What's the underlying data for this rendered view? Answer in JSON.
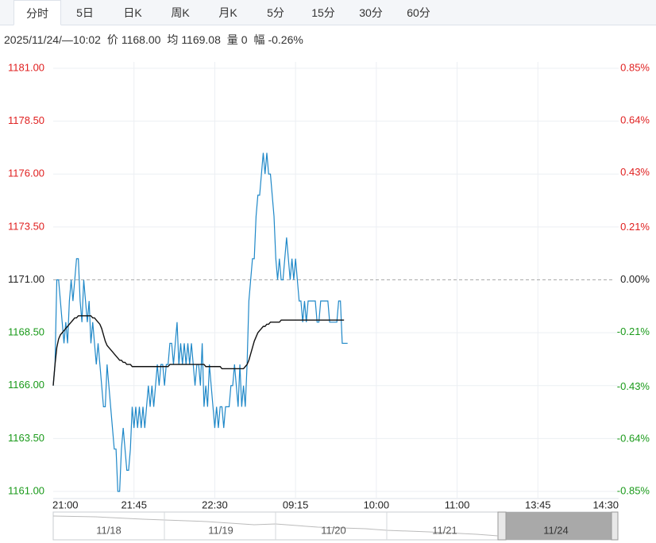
{
  "tabs": [
    "分时",
    "5日",
    "日K",
    "周K",
    "月K",
    "5分",
    "15分",
    "30分",
    "60分"
  ],
  "info": {
    "time": "2025/11/24/—10:02",
    "price_label": "价",
    "price": "1168.00",
    "avg_label": "均",
    "avg": "1169.08",
    "vol_label": "量",
    "vol": "0",
    "chg_label": "幅",
    "chg": "-0.26%"
  },
  "navigator": {
    "labels": [
      "11/18",
      "11/19",
      "11/20",
      "11/21",
      "11/24"
    ]
  },
  "chart_data": {
    "type": "line",
    "xlim": [
      0,
      315
    ],
    "xticks": [
      {
        "value": 0,
        "label": "21:00"
      },
      {
        "value": 45,
        "label": "21:45"
      },
      {
        "value": 90,
        "label": "22:30"
      },
      {
        "value": 135,
        "label": "09:15"
      },
      {
        "value": 180,
        "label": "10:00"
      },
      {
        "value": 225,
        "label": "11:00"
      },
      {
        "value": 270,
        "label": "13:45"
      },
      {
        "value": 315,
        "label": "14:30"
      }
    ],
    "ylim": [
      1161,
      1181
    ],
    "yticks": [
      {
        "value": 1181,
        "label": "1181.00"
      },
      {
        "value": 1178.5,
        "label": "1178.50"
      },
      {
        "value": 1176,
        "label": "1176.00"
      },
      {
        "value": 1173.5,
        "label": "1173.50"
      },
      {
        "value": 1171,
        "label": "1171.00"
      },
      {
        "value": 1168.5,
        "label": "1168.50"
      },
      {
        "value": 1166,
        "label": "1166.00"
      },
      {
        "value": 1163.5,
        "label": "1163.50"
      },
      {
        "value": 1161,
        "label": "1161.00"
      }
    ],
    "y2lim": [
      -0.85,
      0.85
    ],
    "y2ticks": [
      {
        "value": 0.85,
        "label": "0.85%"
      },
      {
        "value": 0.64,
        "label": "0.64%"
      },
      {
        "value": 0.43,
        "label": "0.43%"
      },
      {
        "value": 0.21,
        "label": "0.21%"
      },
      {
        "value": 0,
        "label": "0.00%"
      },
      {
        "value": -0.21,
        "label": "-0.21%"
      },
      {
        "value": -0.43,
        "label": "-0.43%"
      },
      {
        "value": -0.64,
        "label": "-0.64%"
      },
      {
        "value": -0.85,
        "label": "-0.85%"
      }
    ],
    "grid": true,
    "up_color": "#e02020",
    "down_color": "#1a9a1a",
    "flat_color": "#222222",
    "series": [
      {
        "color": "#1f88c8",
        "values": [
          1166,
          1167,
          1171,
          1171,
          1170,
          1169,
          1168,
          1169,
          1168,
          1170,
          1171,
          1170,
          1171,
          1172,
          1172,
          1170,
          1169,
          1171,
          1170,
          1169,
          1170,
          1168,
          1169,
          1168,
          1167,
          1168,
          1167,
          1166,
          1165,
          1165,
          1167,
          1166,
          1165,
          1164,
          1163,
          1163,
          1161,
          1161,
          1163,
          1164,
          1163,
          1162,
          1162,
          1163,
          1165,
          1164,
          1165,
          1164,
          1165,
          1164,
          1165,
          1164,
          1165,
          1166,
          1165,
          1166,
          1165,
          1166,
          1167,
          1166,
          1167,
          1167,
          1166,
          1167,
          1167,
          1168,
          1168,
          1167,
          1168,
          1169,
          1167,
          1168,
          1167,
          1168,
          1167,
          1168,
          1167,
          1168,
          1167,
          1166,
          1167,
          1167,
          1166,
          1168,
          1165,
          1166,
          1165,
          1167,
          1166,
          1165,
          1164,
          1165,
          1164,
          1165,
          1165,
          1164,
          1165,
          1165,
          1165,
          1166,
          1166,
          1167,
          1166,
          1165,
          1167,
          1165,
          1166,
          1165,
          1167,
          1170,
          1171,
          1172,
          1172,
          1174,
          1175,
          1175,
          1176,
          1177,
          1176,
          1177,
          1176,
          1176,
          1175,
          1174,
          1172,
          1171,
          1172,
          1171,
          1171,
          1172,
          1173,
          1172,
          1171,
          1172,
          1171,
          1172,
          1171,
          1170,
          1170,
          1169,
          1170,
          1169,
          1170,
          1170,
          1170,
          1170,
          1170,
          1169,
          1169,
          1170,
          1170,
          1170,
          1170,
          1170,
          1169,
          1169,
          1169,
          1169,
          1169,
          1170,
          1170,
          1168,
          1168,
          1168,
          1168
        ]
      },
      {
        "color": "#111111",
        "values": [
          1166.0,
          1167.0,
          1167.8,
          1168.2,
          1168.4,
          1168.5,
          1168.6,
          1168.7,
          1168.8,
          1168.9,
          1169.0,
          1169.1,
          1169.2,
          1169.2,
          1169.3,
          1169.3,
          1169.3,
          1169.3,
          1169.3,
          1169.3,
          1169.3,
          1169.3,
          1169.2,
          1169.2,
          1169.1,
          1169.0,
          1168.9,
          1168.7,
          1168.4,
          1168.1,
          1167.9,
          1167.8,
          1167.7,
          1167.6,
          1167.5,
          1167.4,
          1167.3,
          1167.2,
          1167.2,
          1167.1,
          1167.1,
          1167.0,
          1167.0,
          1167.0,
          1166.9,
          1166.9,
          1166.9,
          1166.9,
          1166.9,
          1166.9,
          1166.9,
          1166.9,
          1166.9,
          1166.9,
          1166.9,
          1166.9,
          1166.9,
          1166.9,
          1166.9,
          1166.9,
          1166.9,
          1166.9,
          1166.9,
          1166.9,
          1166.9,
          1167.0,
          1167.0,
          1167.0,
          1167.0,
          1167.0,
          1167.0,
          1167.0,
          1167.0,
          1167.0,
          1167.0,
          1167.0,
          1167.0,
          1167.0,
          1167.0,
          1167.0,
          1167.0,
          1167.0,
          1167.0,
          1167.0,
          1167.0,
          1166.9,
          1166.9,
          1166.9,
          1166.9,
          1166.9,
          1166.9,
          1166.9,
          1166.9,
          1166.9,
          1166.8,
          1166.8,
          1166.8,
          1166.8,
          1166.8,
          1166.8,
          1166.8,
          1166.8,
          1166.8,
          1166.8,
          1166.8,
          1166.8,
          1166.8,
          1166.9,
          1167.0,
          1167.2,
          1167.5,
          1167.8,
          1168.1,
          1168.3,
          1168.5,
          1168.6,
          1168.7,
          1168.8,
          1168.8,
          1168.9,
          1168.9,
          1169.0,
          1169.0,
          1169.0,
          1169.0,
          1169.0,
          1169.0,
          1169.1,
          1169.1,
          1169.1,
          1169.1,
          1169.1,
          1169.1,
          1169.1,
          1169.1,
          1169.1,
          1169.1,
          1169.1,
          1169.1,
          1169.1,
          1169.1,
          1169.1,
          1169.1,
          1169.1,
          1169.1,
          1169.1,
          1169.1,
          1169.1,
          1169.1,
          1169.1,
          1169.1,
          1169.1,
          1169.1,
          1169.1,
          1169.1,
          1169.1,
          1169.1,
          1169.1,
          1169.1,
          1169.1,
          1169.1,
          1169.1,
          1169.1
        ]
      }
    ]
  }
}
